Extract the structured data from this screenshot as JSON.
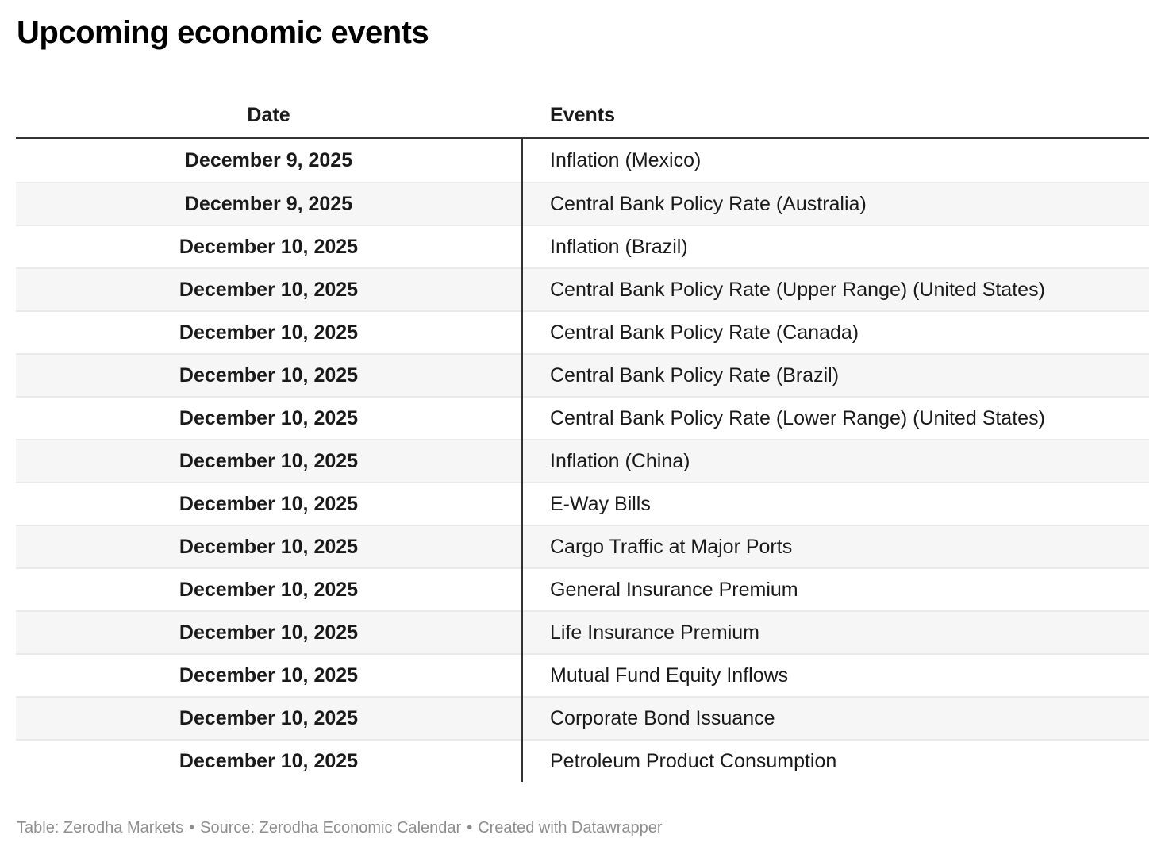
{
  "chart_data": {
    "type": "table",
    "title": "Upcoming economic events",
    "columns": [
      "Date",
      "Events"
    ],
    "rows": [
      [
        "December 9, 2025",
        "Inflation (Mexico)"
      ],
      [
        "December 9, 2025",
        "Central Bank Policy Rate (Australia)"
      ],
      [
        "December 10, 2025",
        "Inflation (Brazil)"
      ],
      [
        "December 10, 2025",
        "Central Bank Policy Rate (Upper Range) (United States)"
      ],
      [
        "December 10, 2025",
        "Central Bank Policy Rate (Canada)"
      ],
      [
        "December 10, 2025",
        "Central Bank Policy Rate (Brazil)"
      ],
      [
        "December 10, 2025",
        "Central Bank Policy Rate (Lower Range) (United States)"
      ],
      [
        "December 10, 2025",
        "Inflation (China)"
      ],
      [
        "December 10, 2025",
        "E-Way Bills"
      ],
      [
        "December 10, 2025",
        "Cargo Traffic at Major Ports"
      ],
      [
        "December 10, 2025",
        "General Insurance Premium"
      ],
      [
        "December 10, 2025",
        "Life Insurance Premium"
      ],
      [
        "December 10, 2025",
        "Mutual Fund Equity Inflows"
      ],
      [
        "December 10, 2025",
        "Corporate Bond Issuance"
      ],
      [
        "December 10, 2025",
        "Petroleum Product Consumption"
      ]
    ],
    "layout": {
      "stripe_rows": "even rows shaded",
      "date_column_align": "center",
      "events_column_align": "left"
    }
  },
  "footer": {
    "table_credit": "Table: Zerodha Markets",
    "bullet": "•",
    "source_credit": "Source: Zerodha Economic Calendar",
    "created_credit": "Created with Datawrapper"
  },
  "colors": {
    "text": "#1a1a1a",
    "rule": "#333333",
    "separator": "#eaeaea",
    "stripe": "#f6f6f6",
    "footer_text": "#8e8e8e"
  }
}
